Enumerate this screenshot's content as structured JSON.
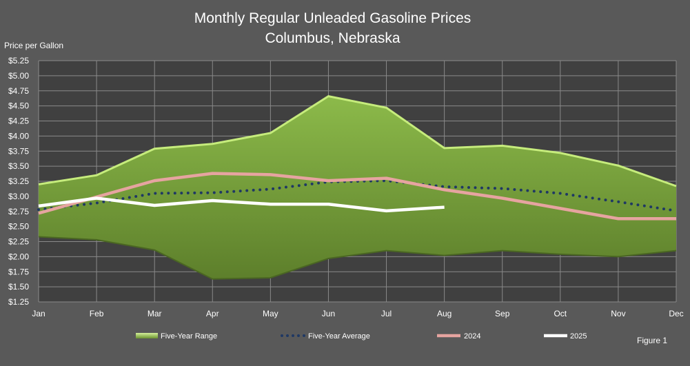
{
  "chart_data": {
    "type": "area",
    "title": [
      "Monthly Regular Unleaded Gasoline Prices",
      "Columbus, Nebraska"
    ],
    "ylabel": "Price per Gallon",
    "xlabel": "",
    "categories": [
      "Jan",
      "Feb",
      "Mar",
      "Apr",
      "May",
      "Jun",
      "Jul",
      "Aug",
      "Sep",
      "Oct",
      "Nov",
      "Dec"
    ],
    "ylim": [
      1.25,
      5.25
    ],
    "yticks": [
      1.25,
      1.5,
      1.75,
      2.0,
      2.25,
      2.5,
      2.75,
      3.0,
      3.25,
      3.5,
      3.75,
      4.0,
      4.25,
      4.5,
      4.75,
      5.0,
      5.25
    ],
    "ytick_labels": [
      "$1.25",
      "$1.50",
      "$1.75",
      "$2.00",
      "$2.25",
      "$2.50",
      "$2.75",
      "$3.00",
      "$3.25",
      "$3.50",
      "$3.75",
      "$4.00",
      "$4.25",
      "$4.50",
      "$4.75",
      "$5.00",
      "$5.25"
    ],
    "grid": true,
    "legend_position": "bottom",
    "range": {
      "name": "Five-Year Range",
      "upper": [
        3.2,
        3.35,
        3.79,
        3.87,
        4.05,
        4.66,
        4.47,
        3.8,
        3.84,
        3.72,
        3.51,
        3.17
      ],
      "lower": [
        2.33,
        2.28,
        2.11,
        1.63,
        1.65,
        1.97,
        2.1,
        2.02,
        2.1,
        2.04,
        2.0,
        2.1
      ],
      "color": "#76a33a"
    },
    "series": [
      {
        "name": "Five-Year Average",
        "style": "dotted",
        "color": "#1f3864",
        "values": [
          2.78,
          2.89,
          3.05,
          3.06,
          3.12,
          3.24,
          3.26,
          3.16,
          3.13,
          3.05,
          2.91,
          2.76
        ]
      },
      {
        "name": "2024",
        "style": "solid",
        "color": "#e6a4a0",
        "values": [
          2.72,
          2.99,
          3.26,
          3.38,
          3.36,
          3.26,
          3.3,
          3.11,
          2.97,
          2.8,
          2.63,
          2.63
        ]
      },
      {
        "name": "2025",
        "style": "solid",
        "color": "#ffffff",
        "values": [
          2.84,
          2.97,
          2.85,
          2.93,
          2.87,
          2.87,
          2.76,
          2.82,
          null,
          null,
          null,
          null
        ]
      }
    ]
  },
  "figure_label": "Figure 1"
}
